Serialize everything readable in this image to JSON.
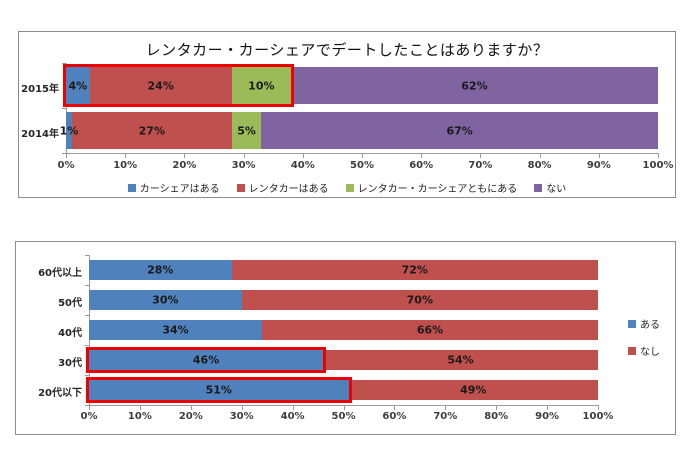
{
  "page": {
    "background": "#ffffff"
  },
  "colors": {
    "highlight_box": "#ee0000",
    "frame_border": "#8c8c8c",
    "axis_line": "#9b9b9b",
    "label_text": "#1a1a1a"
  },
  "chart_data": [
    {
      "type": "bar",
      "orientation": "horizontal",
      "stacked": true,
      "title": "レンタカー・カーシェアでデートしたことはありますか？",
      "categories": [
        "2015年",
        "2014年"
      ],
      "series": [
        {
          "name": "カーシェアはある",
          "color": "#4F81BD",
          "values": [
            4,
            1
          ]
        },
        {
          "name": "レンタカーはある",
          "color": "#C0504D",
          "values": [
            24,
            27
          ]
        },
        {
          "name": "レンタカー・カーシェアともにある",
          "color": "#9BBB59",
          "values": [
            10,
            5
          ]
        },
        {
          "name": "ない",
          "color": "#8064A2",
          "values": [
            62,
            67
          ]
        }
      ],
      "data_labels": [
        [
          "4%",
          "24%",
          "10%",
          "62%"
        ],
        [
          "1%",
          "27%",
          "5%",
          "67%"
        ]
      ],
      "x_ticks": [
        "0%",
        "10%",
        "20%",
        "30%",
        "40%",
        "50%",
        "60%",
        "70%",
        "80%",
        "90%",
        "100%"
      ],
      "xlim": [
        0,
        100
      ],
      "grid": false,
      "legend_position": "bottom",
      "highlights": [
        {
          "category": "2015年",
          "category_index": 0,
          "from": 0,
          "to": 38
        }
      ]
    },
    {
      "type": "bar",
      "orientation": "horizontal",
      "stacked": true,
      "title": "",
      "categories": [
        "60代以上",
        "50代",
        "40代",
        "30代",
        "20代以下"
      ],
      "series": [
        {
          "name": "ある",
          "color": "#4F81BD",
          "values": [
            28,
            30,
            34,
            46,
            51
          ]
        },
        {
          "name": "なし",
          "color": "#C0504D",
          "values": [
            72,
            70,
            66,
            54,
            49
          ]
        }
      ],
      "data_labels": [
        [
          "28%",
          "72%"
        ],
        [
          "30%",
          "70%"
        ],
        [
          "34%",
          "66%"
        ],
        [
          "46%",
          "54%"
        ],
        [
          "51%",
          "49%"
        ]
      ],
      "x_ticks": [
        "0%",
        "10%",
        "20%",
        "30%",
        "40%",
        "50%",
        "60%",
        "70%",
        "80%",
        "90%",
        "100%"
      ],
      "xlim": [
        0,
        100
      ],
      "grid": false,
      "legend_position": "right",
      "highlights": [
        {
          "category": "30代",
          "category_index": 3,
          "from": 0,
          "to": 46
        },
        {
          "category": "20代以下",
          "category_index": 4,
          "from": 0,
          "to": 51
        }
      ]
    }
  ]
}
